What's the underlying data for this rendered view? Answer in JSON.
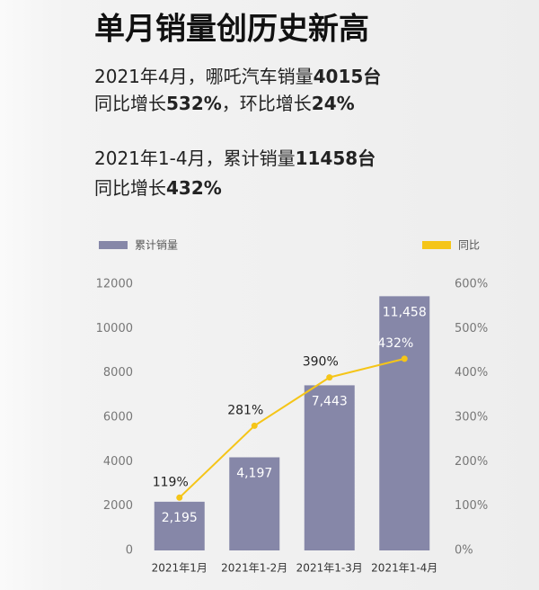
{
  "chart_data": {
    "type": "bar",
    "title": "单月销量创历史新高",
    "notes": [
      [
        "2021年4月，哪吒汽车销量",
        "4015台"
      ],
      [
        "同比增长",
        "532%",
        "，环比增长",
        "24%"
      ],
      [
        "2021年1-4月，累计销量",
        "11458台"
      ],
      [
        "同比增长",
        "432%"
      ]
    ],
    "categories": [
      "2021年1月",
      "2021年1-2月",
      "2021年1-3月",
      "2021年1-4月"
    ],
    "series": [
      {
        "name": "累计销量",
        "type": "bar",
        "color": "#8687a8",
        "values": [
          2195,
          4197,
          7443,
          11458
        ],
        "value_labels": [
          "2,195",
          "4,197",
          "7,443",
          "11,458"
        ]
      },
      {
        "name": "同比",
        "type": "line",
        "axis": "y2",
        "color": "#f5c518",
        "values": [
          119,
          281,
          390,
          432
        ],
        "value_labels": [
          "119%",
          "281%",
          "390%",
          "432%"
        ]
      }
    ],
    "ylim": [
      0,
      12000
    ],
    "yticks": [
      0,
      2000,
      4000,
      6000,
      8000,
      10000,
      12000
    ],
    "y2lim": [
      0,
      600
    ],
    "y2ticks": [
      {
        "value": 0,
        "label": "0%"
      },
      {
        "value": 100,
        "label": "100%"
      },
      {
        "value": 200,
        "label": "200%"
      },
      {
        "value": 300,
        "label": "300%"
      },
      {
        "value": 400,
        "label": "400%"
      },
      {
        "value": 500,
        "label": "500%"
      },
      {
        "value": 600,
        "label": "600%"
      }
    ]
  }
}
